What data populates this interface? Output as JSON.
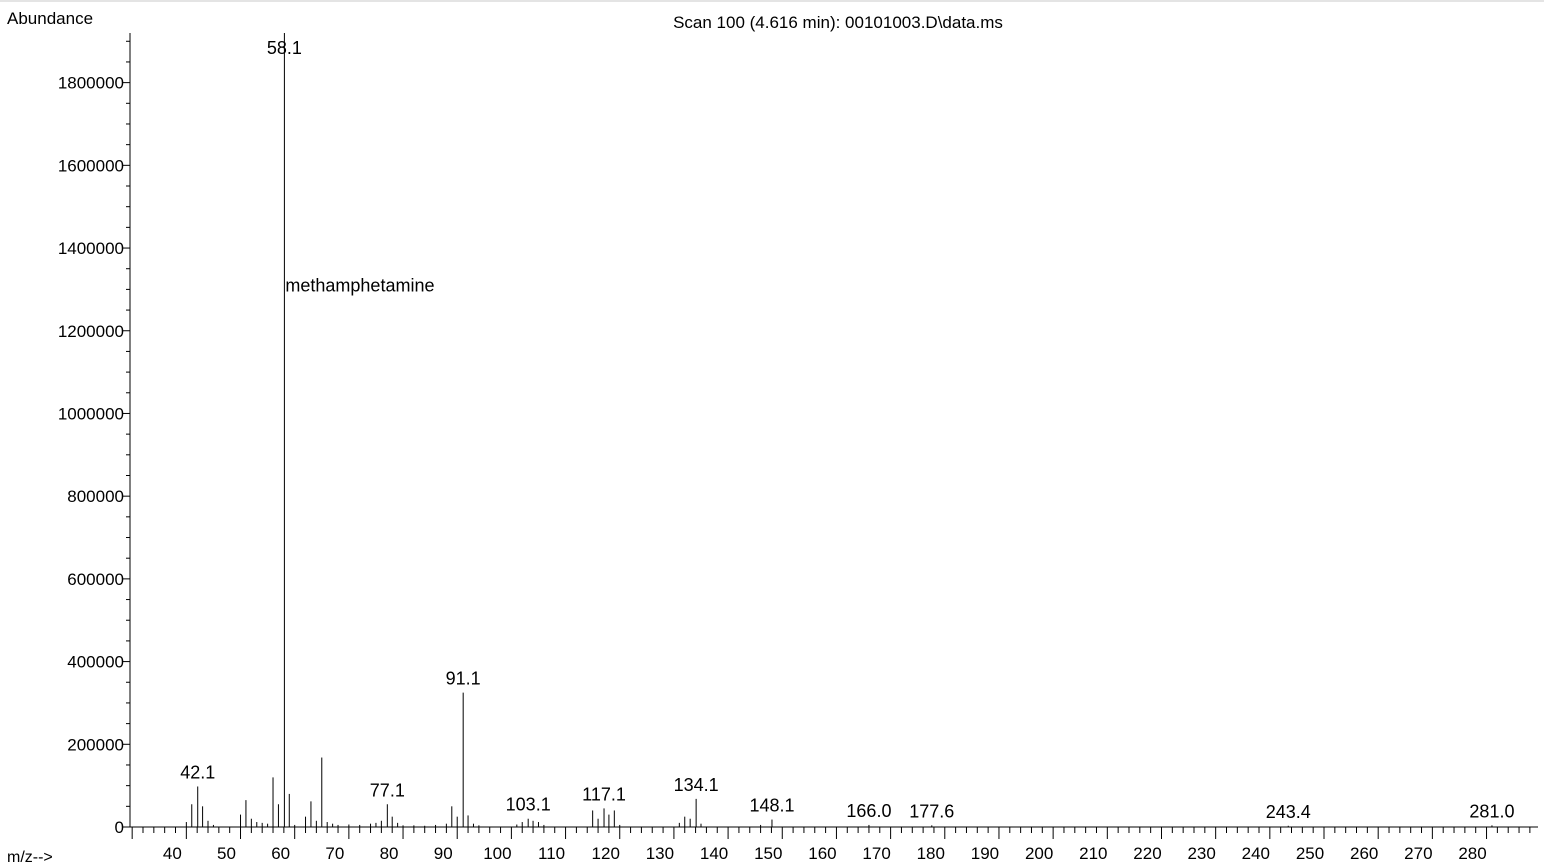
{
  "chart_data": {
    "type": "bar",
    "title": "Scan 100 (4.616 min): 00101003.D\\data.ms",
    "ylabel": "Abundance",
    "xlabel": "m/z-->",
    "annotation": "methamphetamine",
    "xlim": [
      29.6,
      289.5
    ],
    "ylim": [
      0,
      1920000
    ],
    "x_ticks": [
      40,
      50,
      60,
      70,
      80,
      90,
      100,
      110,
      120,
      130,
      140,
      150,
      160,
      170,
      180,
      190,
      200,
      210,
      220,
      230,
      240,
      250,
      260,
      270,
      280
    ],
    "y_ticks": [
      0,
      200000,
      400000,
      600000,
      800000,
      1000000,
      1200000,
      1400000,
      1600000,
      1800000
    ],
    "grid": false,
    "peaks": [
      {
        "mz": 40,
        "abundance": 12000
      },
      {
        "mz": 41,
        "abundance": 55000
      },
      {
        "mz": 42.1,
        "abundance": 98000
      },
      {
        "mz": 43,
        "abundance": 50000
      },
      {
        "mz": 44,
        "abundance": 15000
      },
      {
        "mz": 45,
        "abundance": 5000
      },
      {
        "mz": 50,
        "abundance": 30000
      },
      {
        "mz": 51,
        "abundance": 65000
      },
      {
        "mz": 52,
        "abundance": 20000
      },
      {
        "mz": 53,
        "abundance": 12000
      },
      {
        "mz": 54,
        "abundance": 10000
      },
      {
        "mz": 55,
        "abundance": 8000
      },
      {
        "mz": 56,
        "abundance": 120000
      },
      {
        "mz": 57,
        "abundance": 55000
      },
      {
        "mz": 58.1,
        "abundance": 1920000
      },
      {
        "mz": 59,
        "abundance": 80000
      },
      {
        "mz": 60,
        "abundance": 5000
      },
      {
        "mz": 62,
        "abundance": 25000
      },
      {
        "mz": 63,
        "abundance": 62000
      },
      {
        "mz": 64,
        "abundance": 15000
      },
      {
        "mz": 65,
        "abundance": 168000
      },
      {
        "mz": 66,
        "abundance": 12000
      },
      {
        "mz": 67,
        "abundance": 8000
      },
      {
        "mz": 68,
        "abundance": 5000
      },
      {
        "mz": 70,
        "abundance": 6000
      },
      {
        "mz": 72,
        "abundance": 5000
      },
      {
        "mz": 74,
        "abundance": 8000
      },
      {
        "mz": 75,
        "abundance": 10000
      },
      {
        "mz": 76,
        "abundance": 15000
      },
      {
        "mz": 77.1,
        "abundance": 55000
      },
      {
        "mz": 78,
        "abundance": 25000
      },
      {
        "mz": 79,
        "abundance": 10000
      },
      {
        "mz": 80,
        "abundance": 4000
      },
      {
        "mz": 82,
        "abundance": 4000
      },
      {
        "mz": 84,
        "abundance": 3000
      },
      {
        "mz": 86,
        "abundance": 5000
      },
      {
        "mz": 88,
        "abundance": 8000
      },
      {
        "mz": 89,
        "abundance": 50000
      },
      {
        "mz": 90,
        "abundance": 25000
      },
      {
        "mz": 91.1,
        "abundance": 325000
      },
      {
        "mz": 92,
        "abundance": 28000
      },
      {
        "mz": 93,
        "abundance": 8000
      },
      {
        "mz": 94,
        "abundance": 4000
      },
      {
        "mz": 101,
        "abundance": 6000
      },
      {
        "mz": 102,
        "abundance": 12000
      },
      {
        "mz": 103.1,
        "abundance": 20000
      },
      {
        "mz": 104,
        "abundance": 15000
      },
      {
        "mz": 105,
        "abundance": 12000
      },
      {
        "mz": 106,
        "abundance": 5000
      },
      {
        "mz": 115,
        "abundance": 40000
      },
      {
        "mz": 116,
        "abundance": 20000
      },
      {
        "mz": 117.1,
        "abundance": 45000
      },
      {
        "mz": 118,
        "abundance": 30000
      },
      {
        "mz": 119,
        "abundance": 40000
      },
      {
        "mz": 120,
        "abundance": 5000
      },
      {
        "mz": 131,
        "abundance": 10000
      },
      {
        "mz": 132,
        "abundance": 25000
      },
      {
        "mz": 133,
        "abundance": 20000
      },
      {
        "mz": 134.1,
        "abundance": 68000
      },
      {
        "mz": 135,
        "abundance": 8000
      },
      {
        "mz": 146,
        "abundance": 5000
      },
      {
        "mz": 148.1,
        "abundance": 18000
      },
      {
        "mz": 166.0,
        "abundance": 5000
      },
      {
        "mz": 177.6,
        "abundance": 4000
      },
      {
        "mz": 243.4,
        "abundance": 3000
      },
      {
        "mz": 281.0,
        "abundance": 4000
      }
    ],
    "peak_labels": [
      {
        "mz": 42.1,
        "text": "42.1"
      },
      {
        "mz": 58.1,
        "text": "58.1"
      },
      {
        "mz": 77.1,
        "text": "77.1"
      },
      {
        "mz": 91.1,
        "text": "91.1"
      },
      {
        "mz": 103.1,
        "text": "103.1"
      },
      {
        "mz": 117.1,
        "text": "117.1"
      },
      {
        "mz": 134.1,
        "text": "134.1"
      },
      {
        "mz": 148.1,
        "text": "148.1"
      },
      {
        "mz": 166.0,
        "text": "166.0"
      },
      {
        "mz": 177.6,
        "text": "177.6"
      },
      {
        "mz": 243.4,
        "text": "243.4"
      },
      {
        "mz": 281.0,
        "text": "281.0"
      }
    ]
  }
}
